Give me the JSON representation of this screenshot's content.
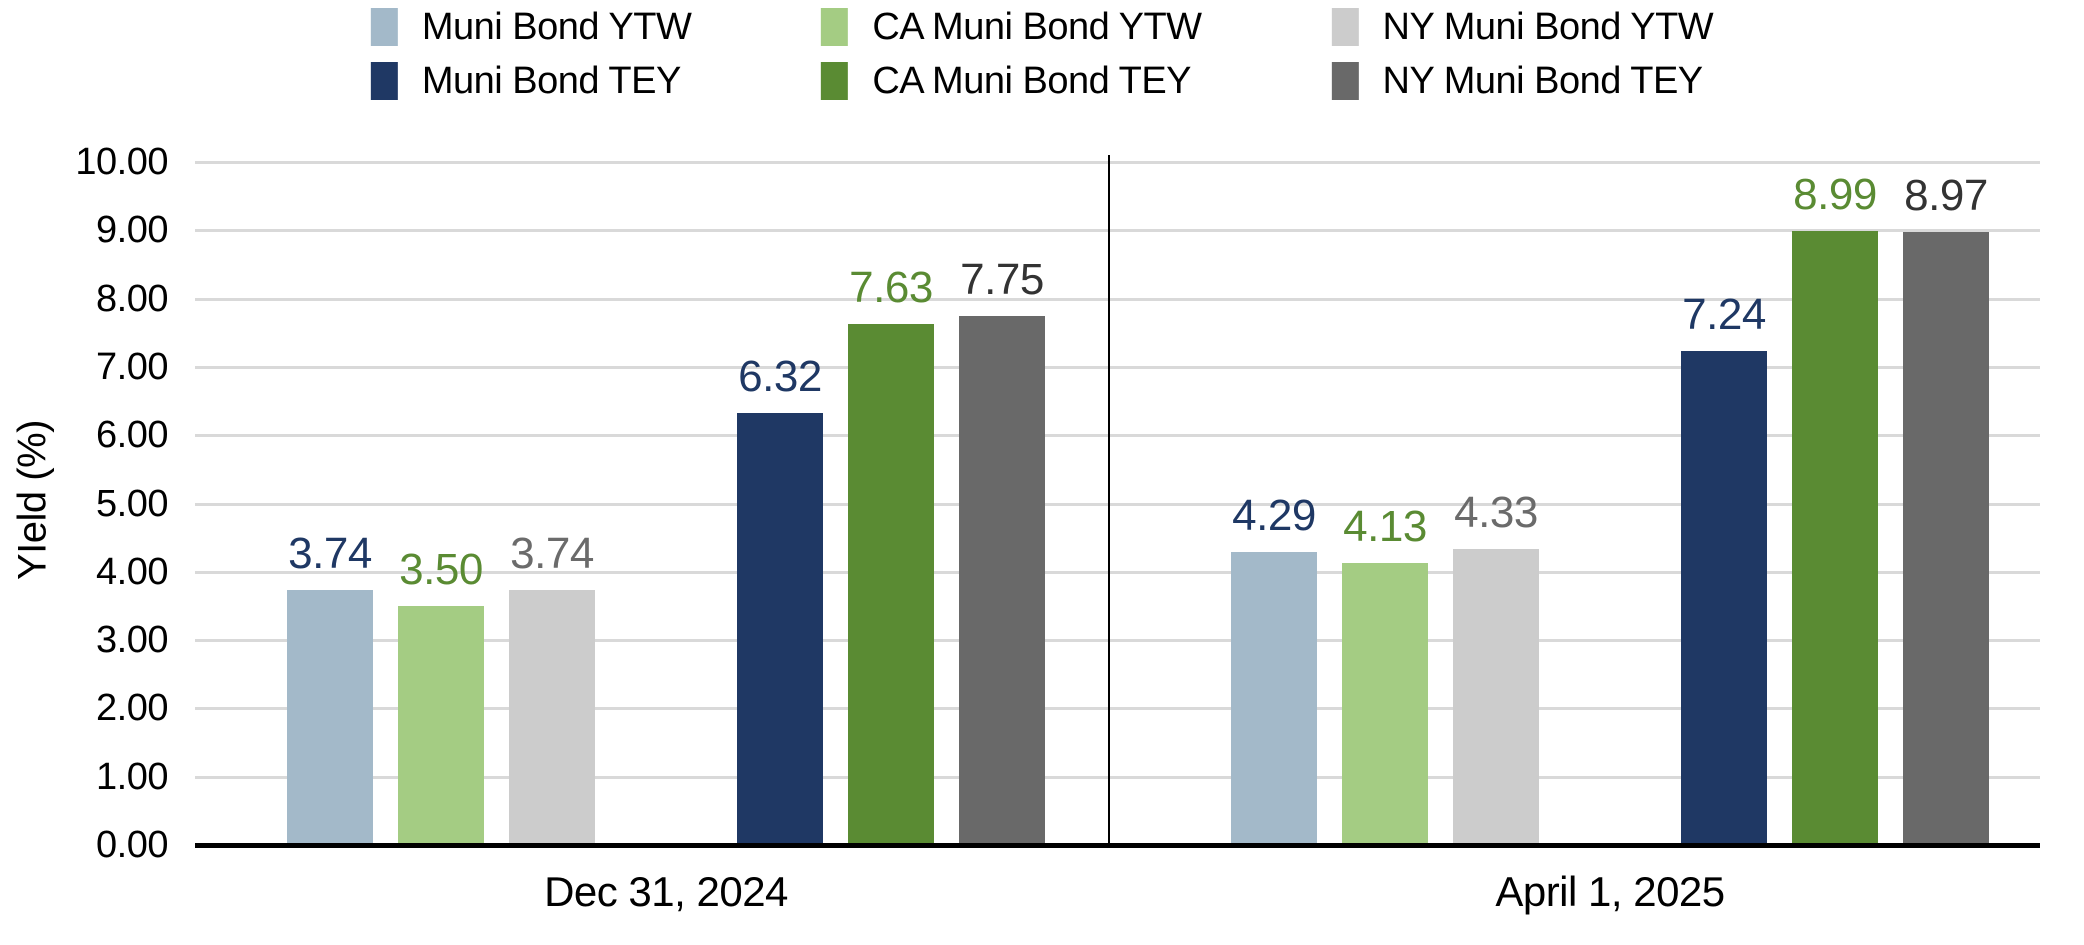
{
  "chart_data": {
    "type": "bar",
    "title": "",
    "xlabel": "",
    "ylabel": "YIeld (%)",
    "ylim": [
      0,
      10
    ],
    "ytick_step": 1.0,
    "ytick_labels": [
      "0.00",
      "1.00",
      "2.00",
      "3.00",
      "4.00",
      "5.00",
      "6.00",
      "7.00",
      "8.00",
      "9.00",
      "10.00"
    ],
    "grid": true,
    "legend_position": "top-center",
    "categories": [
      "Dec 31, 2024",
      "April 1, 2025"
    ],
    "series": [
      {
        "name": "Muni Bond YTW",
        "values": [
          3.74,
          4.29
        ],
        "color": "#A3B9C9",
        "label_color": "#1F3864"
      },
      {
        "name": "CA Muni Bond YTW",
        "values": [
          3.5,
          4.13
        ],
        "color": "#A4CC83",
        "label_color": "#5A8B33"
      },
      {
        "name": "NY Muni Bond YTW",
        "values": [
          3.74,
          4.33
        ],
        "color": "#CCCCCC",
        "label_color": "#6B6B6B"
      },
      {
        "name": "Muni Bond TEY",
        "values": [
          6.32,
          7.24
        ],
        "color": "#1F3864",
        "label_color": "#1F3864"
      },
      {
        "name": "CA Muni Bond TEY",
        "values": [
          7.63,
          8.99
        ],
        "color": "#5A8B33",
        "label_color": "#5A8B33"
      },
      {
        "name": "NY Muni Bond TEY",
        "values": [
          7.75,
          8.97
        ],
        "color": "#696969",
        "label_color": "#333333"
      }
    ],
    "value_label_format": "2dp"
  },
  "colors": {
    "gridline": "#D9D9D9",
    "axis": "#000000",
    "divider": "#000000",
    "legend_text": "#000000"
  }
}
